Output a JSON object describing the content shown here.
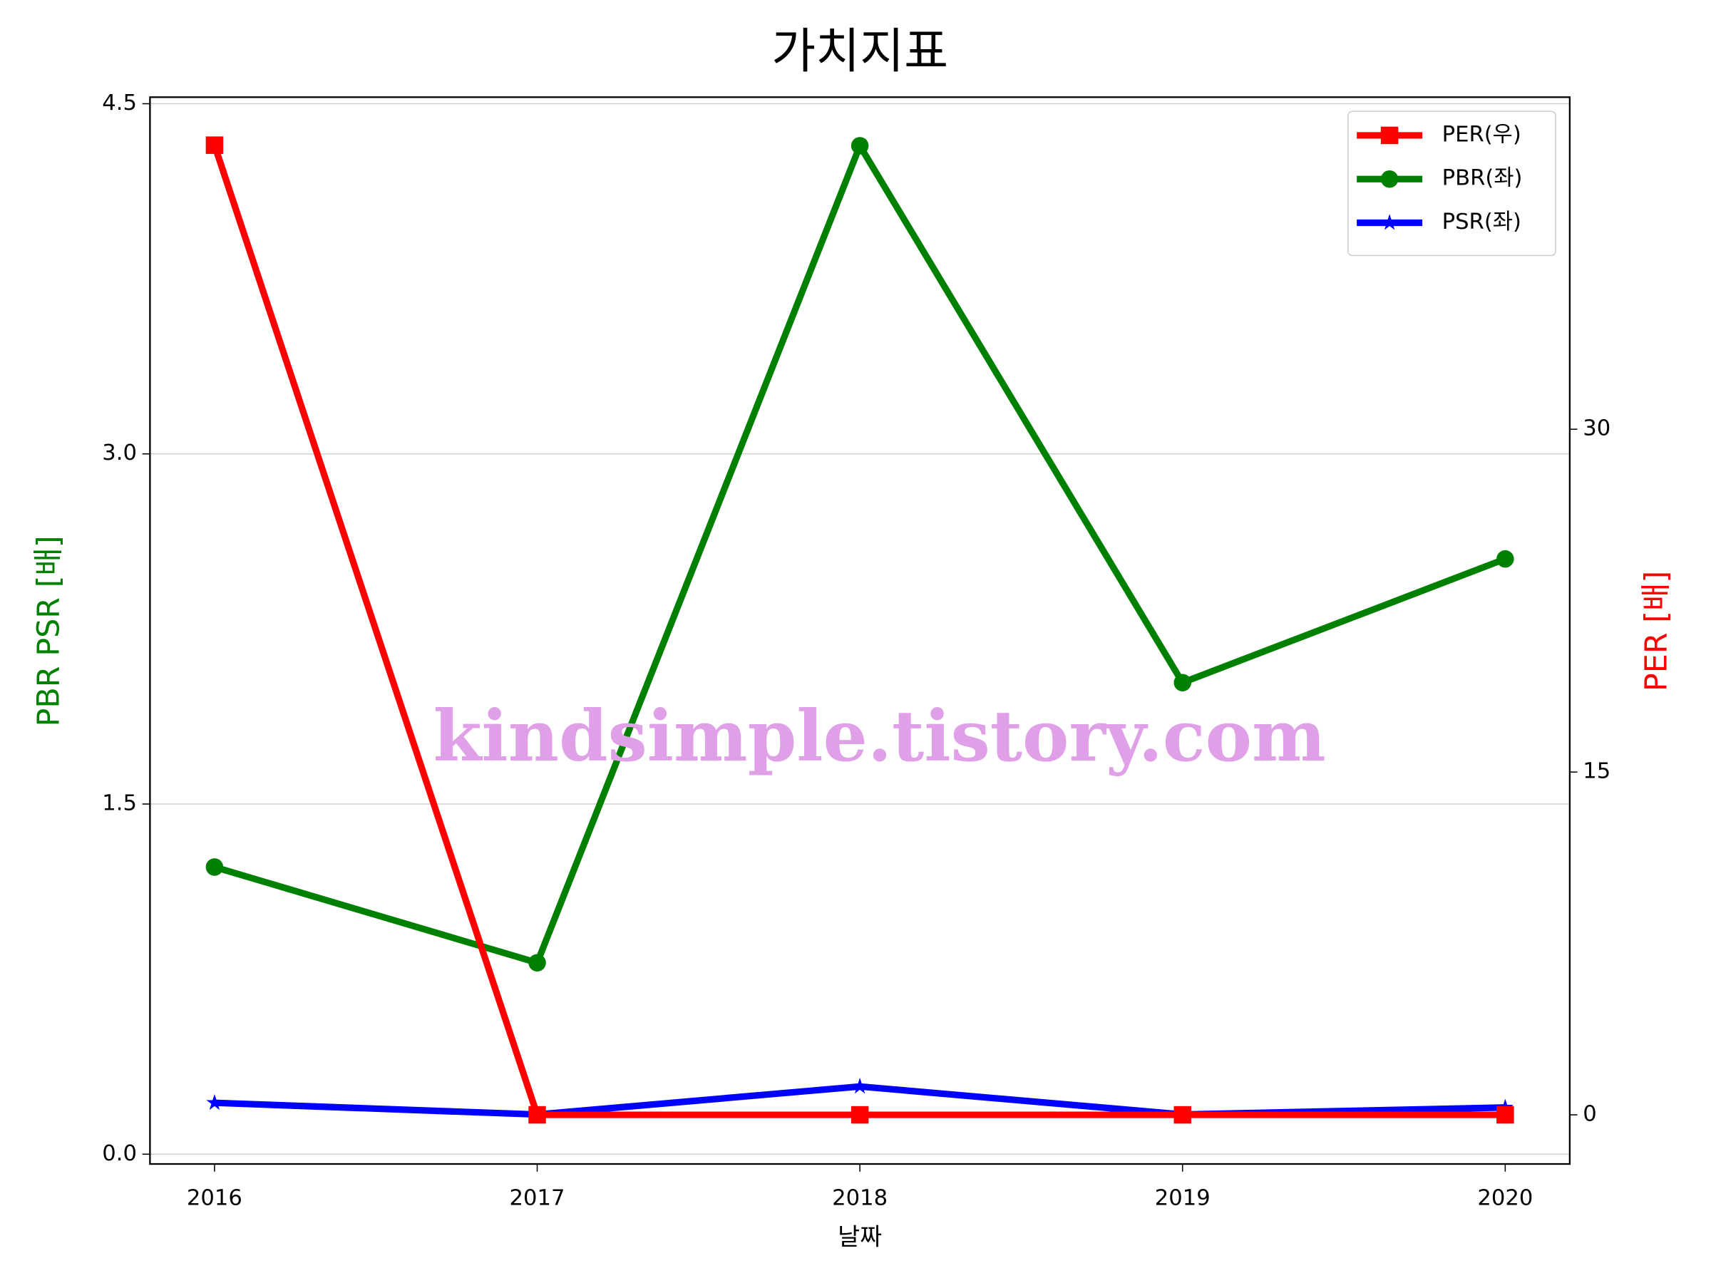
{
  "chart_data": {
    "type": "line",
    "title": "가치지표",
    "xlabel": "날짜",
    "ylabel": "PBR PSR [배]",
    "y2label": "PER [배]",
    "ylabel_color": "#008000",
    "y2label_color": "#ff0000",
    "x": [
      2016,
      2017,
      2018,
      2019,
      2020
    ],
    "xlim": [
      2015.8,
      2020.2
    ],
    "xticks": [
      2016,
      2017,
      2018,
      2019,
      2020
    ],
    "ylim": [
      -0.042,
      4.528
    ],
    "yticks": [
      {
        "value": 0,
        "label": "0.0"
      },
      1.5,
      {
        "value": 3,
        "label": "3.0"
      },
      4.5
    ],
    "y2lim": [
      -2.15,
      44.53
    ],
    "y2ticks": [
      0,
      15,
      30
    ],
    "grid": true,
    "legend": "upper right",
    "series": [
      {
        "name": "PER(우)",
        "color": "#ff0000",
        "marker": "square",
        "axis": "y2",
        "values": [
          42.43,
          0,
          0,
          0,
          0
        ]
      },
      {
        "name": "PBR(좌)",
        "color": "#008000",
        "marker": "circle",
        "values": [
          1.23,
          0.82,
          4.32,
          2.02,
          2.55
        ]
      },
      {
        "name": "PSR(좌)",
        "color": "#0000ff",
        "marker": "star",
        "values": [
          0.22,
          0.17,
          0.29,
          0.17,
          0.2
        ]
      }
    ],
    "annotations": [
      {
        "text": "kindsimple.tistory.com"
      }
    ]
  }
}
